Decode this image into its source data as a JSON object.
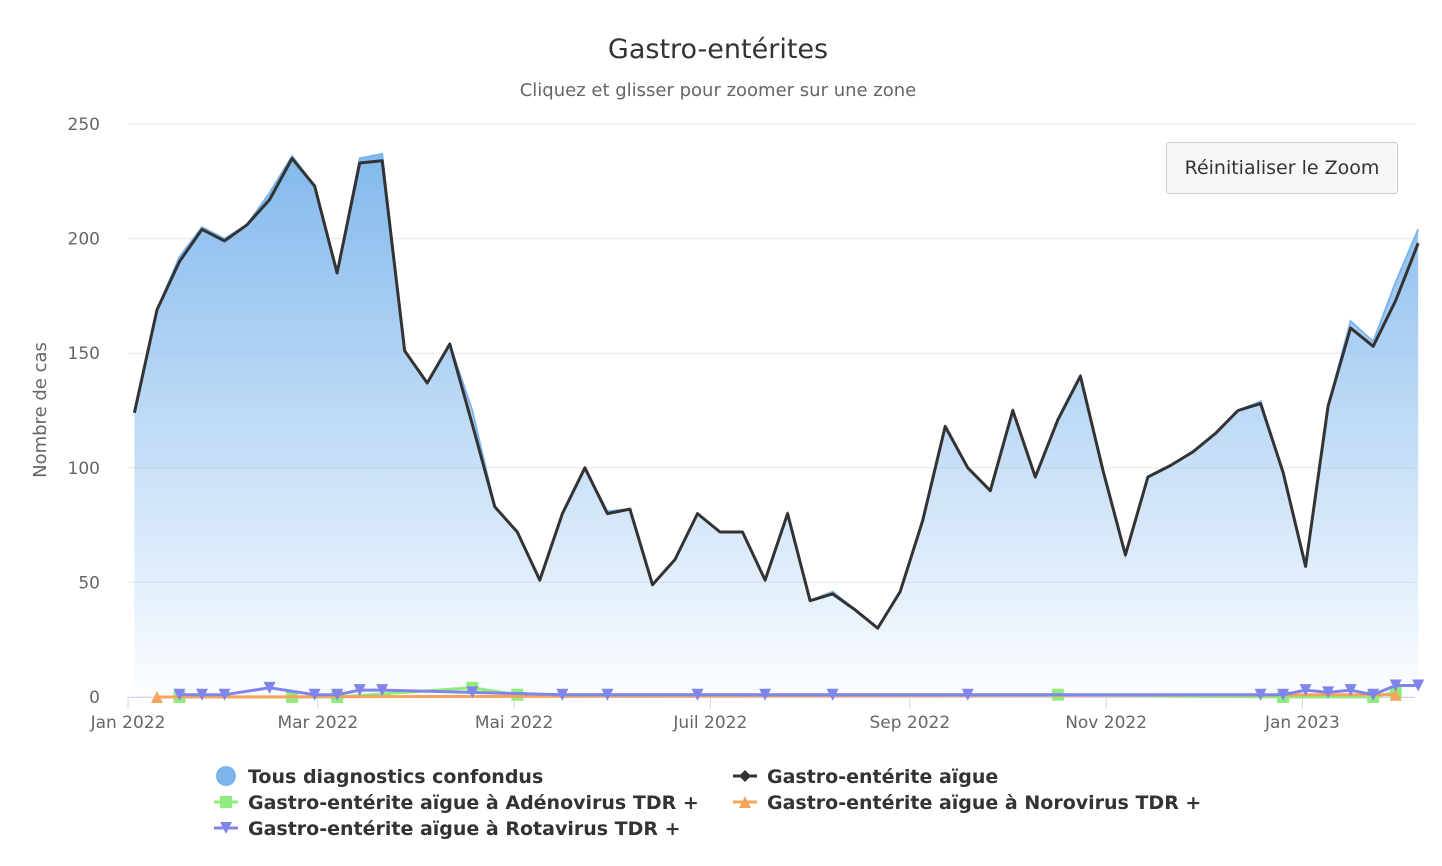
{
  "chart_data": {
    "type": "area",
    "title": "Gastro-entérites",
    "subtitle": "Cliquez et glisser pour zoomer sur une zone",
    "ylabel": "Nombre de cas",
    "xlabel": "",
    "ylim": [
      0,
      250
    ],
    "yticks": [
      "0",
      "50",
      "100",
      "150",
      "200",
      "250"
    ],
    "xlim": [
      "2022-01-01",
      "2023-02-05"
    ],
    "xticks": [
      {
        "date": "2022-01-01",
        "label": "Jan 2022"
      },
      {
        "date": "2022-03-01",
        "label": "Mar 2022"
      },
      {
        "date": "2022-05-01",
        "label": "Mai 2022"
      },
      {
        "date": "2022-07-01",
        "label": "Juil 2022"
      },
      {
        "date": "2022-09-01",
        "label": "Sep 2022"
      },
      {
        "date": "2022-11-01",
        "label": "Nov 2022"
      },
      {
        "date": "2023-01-01",
        "label": "Jan 2023"
      }
    ],
    "grid": true,
    "legend_position": "bottom",
    "x": [
      "2022-01-03",
      "2022-01-10",
      "2022-01-17",
      "2022-01-24",
      "2022-01-31",
      "2022-02-07",
      "2022-02-14",
      "2022-02-21",
      "2022-02-28",
      "2022-03-07",
      "2022-03-14",
      "2022-03-21",
      "2022-03-28",
      "2022-04-04",
      "2022-04-11",
      "2022-04-18",
      "2022-04-25",
      "2022-05-02",
      "2022-05-09",
      "2022-05-16",
      "2022-05-23",
      "2022-05-30",
      "2022-06-06",
      "2022-06-13",
      "2022-06-20",
      "2022-06-27",
      "2022-07-04",
      "2022-07-11",
      "2022-07-18",
      "2022-07-25",
      "2022-08-01",
      "2022-08-08",
      "2022-08-15",
      "2022-08-22",
      "2022-08-29",
      "2022-09-05",
      "2022-09-12",
      "2022-09-19",
      "2022-09-26",
      "2022-10-03",
      "2022-10-10",
      "2022-10-17",
      "2022-10-24",
      "2022-10-31",
      "2022-11-07",
      "2022-11-14",
      "2022-11-21",
      "2022-11-28",
      "2022-12-05",
      "2022-12-12",
      "2022-12-19",
      "2022-12-26",
      "2023-01-02",
      "2023-01-09",
      "2023-01-16",
      "2023-01-23",
      "2023-01-30",
      "2023-02-06"
    ],
    "series": [
      {
        "name": "Tous diagnostics confondus",
        "kind": "area",
        "color": "#7cb5ec",
        "marker": "circle",
        "values": [
          125,
          169,
          192,
          205,
          200,
          206,
          220,
          236,
          223,
          185,
          235,
          237,
          151,
          137,
          154,
          125,
          83,
          72,
          51,
          80,
          100,
          81,
          82,
          49,
          60,
          80,
          72,
          72,
          51,
          80,
          42,
          46,
          38,
          30,
          46,
          77,
          118,
          100,
          90,
          125,
          96,
          121,
          140,
          99,
          62,
          96,
          101,
          107,
          115,
          125,
          129,
          98,
          57,
          127,
          164,
          155,
          181,
          204
        ]
      },
      {
        "name": "Gastro-entérite aïgue",
        "kind": "line",
        "color": "#333333",
        "marker": "diamond",
        "values": [
          124,
          169,
          190,
          204,
          199,
          206,
          217,
          235,
          223,
          185,
          233,
          234,
          151,
          137,
          154,
          119,
          83,
          72,
          51,
          80,
          100,
          80,
          82,
          49,
          60,
          80,
          72,
          72,
          51,
          80,
          42,
          45,
          38,
          30,
          46,
          77,
          118,
          100,
          90,
          125,
          96,
          121,
          140,
          99,
          62,
          96,
          101,
          107,
          115,
          125,
          128,
          98,
          57,
          127,
          161,
          153,
          173,
          198
        ]
      },
      {
        "name": "Gastro-entérite aïgue à Adénovirus TDR +",
        "kind": "sparse",
        "color": "#90ed7d",
        "marker": "square",
        "points": [
          [
            "2022-01-17",
            0
          ],
          [
            "2022-02-21",
            0
          ],
          [
            "2022-03-07",
            0
          ],
          [
            "2022-04-18",
            4
          ],
          [
            "2022-05-02",
            1
          ],
          [
            "2022-10-17",
            1
          ],
          [
            "2022-12-26",
            0
          ],
          [
            "2023-01-23",
            0
          ],
          [
            "2023-01-30",
            2
          ]
        ]
      },
      {
        "name": "Gastro-entérite aïgue à Norovirus TDR +",
        "kind": "sparse",
        "color": "#f7a35c",
        "marker": "triangle",
        "points": [
          [
            "2022-01-10",
            0
          ],
          [
            "2023-01-30",
            1
          ]
        ]
      },
      {
        "name": "Gastro-entérite aïgue à Rotavirus TDR +",
        "kind": "sparse",
        "color": "#8085e9",
        "marker": "triangle-down",
        "points": [
          [
            "2022-01-17",
            1
          ],
          [
            "2022-01-24",
            1
          ],
          [
            "2022-01-31",
            1
          ],
          [
            "2022-02-14",
            4
          ],
          [
            "2022-02-28",
            1
          ],
          [
            "2022-03-07",
            1
          ],
          [
            "2022-03-14",
            3
          ],
          [
            "2022-03-21",
            3
          ],
          [
            "2022-04-18",
            2
          ],
          [
            "2022-05-16",
            1
          ],
          [
            "2022-05-30",
            1
          ],
          [
            "2022-06-27",
            1
          ],
          [
            "2022-07-18",
            1
          ],
          [
            "2022-08-08",
            1
          ],
          [
            "2022-09-19",
            1
          ],
          [
            "2022-12-19",
            1
          ],
          [
            "2022-12-26",
            1
          ],
          [
            "2023-01-02",
            3
          ],
          [
            "2023-01-09",
            2
          ],
          [
            "2023-01-16",
            3
          ],
          [
            "2023-01-23",
            1
          ],
          [
            "2023-01-30",
            5
          ],
          [
            "2023-02-06",
            5
          ]
        ]
      }
    ]
  },
  "reset_zoom_label": "Réinitialiser le Zoom"
}
